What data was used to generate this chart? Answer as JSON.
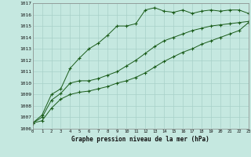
{
  "xlabel": "Graphe pression niveau de la mer (hPa)",
  "bg_color": "#c5e8e0",
  "grid_color": "#a8d0c8",
  "line_color": "#1a5c1a",
  "x": [
    0,
    1,
    2,
    3,
    4,
    5,
    6,
    7,
    8,
    9,
    10,
    11,
    12,
    13,
    14,
    15,
    16,
    17,
    18,
    19,
    20,
    21,
    22,
    23
  ],
  "line_max": [
    1006.5,
    1007.2,
    1009.0,
    1009.5,
    1011.3,
    1012.2,
    1013.0,
    1013.5,
    1014.2,
    1015.0,
    1015.0,
    1015.2,
    1016.4,
    1016.6,
    1016.3,
    1016.2,
    1016.4,
    1016.1,
    1016.3,
    1016.4,
    1016.3,
    1016.4,
    1016.4,
    1016.1
  ],
  "line_mean": [
    1006.5,
    1007.0,
    1008.5,
    1009.1,
    1010.0,
    1010.2,
    1010.2,
    1010.4,
    1010.7,
    1011.0,
    1011.5,
    1012.0,
    1012.6,
    1013.2,
    1013.7,
    1014.0,
    1014.3,
    1014.6,
    1014.8,
    1015.0,
    1015.1,
    1015.2,
    1015.3,
    1015.4
  ],
  "line_min": [
    1006.5,
    1006.7,
    1007.8,
    1008.6,
    1009.0,
    1009.2,
    1009.3,
    1009.5,
    1009.7,
    1010.0,
    1010.2,
    1010.5,
    1010.9,
    1011.4,
    1011.9,
    1012.3,
    1012.7,
    1013.0,
    1013.4,
    1013.7,
    1014.0,
    1014.3,
    1014.6,
    1015.3
  ],
  "ylim": [
    1006,
    1017
  ],
  "yticks": [
    1006,
    1007,
    1008,
    1009,
    1010,
    1011,
    1012,
    1013,
    1014,
    1015,
    1016,
    1017
  ],
  "xlim": [
    0,
    23
  ],
  "xticks": [
    0,
    1,
    2,
    3,
    4,
    5,
    6,
    7,
    8,
    9,
    10,
    11,
    12,
    13,
    14,
    15,
    16,
    17,
    18,
    19,
    20,
    21,
    22,
    23
  ]
}
